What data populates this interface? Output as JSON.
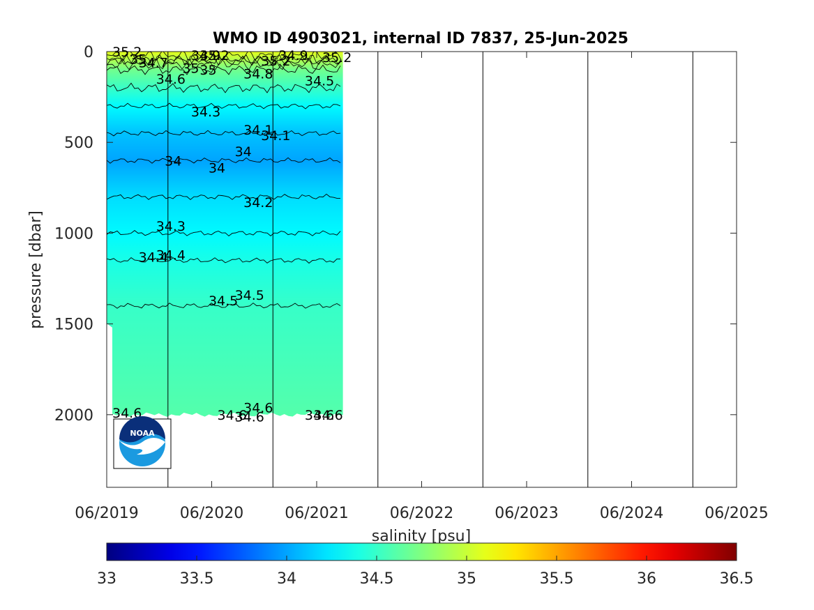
{
  "chart_data": {
    "type": "heatmap",
    "title": "WMO ID 4903021, internal ID 7837, 25-Jun-2025",
    "xlabel": "",
    "ylabel": "pressure [dbar]",
    "x_tick_labels": [
      "06/2019",
      "06/2020",
      "06/2021",
      "06/2022",
      "06/2023",
      "06/2024",
      "06/2025"
    ],
    "xlim": [
      "2019-06",
      "2025-06"
    ],
    "y_tick_labels": [
      "0",
      "500",
      "1000",
      "1500",
      "2000"
    ],
    "ylim": [
      2400,
      0
    ],
    "y_reversed": true,
    "data_x_extent": [
      "2019-06",
      "2021-09"
    ],
    "data_y_extent": [
      0,
      2000
    ],
    "year_boundaries": [
      "2020-01",
      "2021-01",
      "2022-01",
      "2023-01",
      "2024-01",
      "2025-01"
    ],
    "colorbar": {
      "label": "salinity [psu]",
      "colormap": "jet",
      "range": [
        33,
        36.5
      ],
      "tick_labels": [
        "33",
        "33.5",
        "34",
        "34.5",
        "35",
        "35.5",
        "36",
        "36.5"
      ]
    },
    "salinity_profile": [
      {
        "pressure": 0,
        "salinity": 35.1
      },
      {
        "pressure": 50,
        "salinity": 34.9
      },
      {
        "pressure": 100,
        "salinity": 34.7
      },
      {
        "pressure": 200,
        "salinity": 34.5
      },
      {
        "pressure": 300,
        "salinity": 34.3
      },
      {
        "pressure": 450,
        "salinity": 34.1
      },
      {
        "pressure": 600,
        "salinity": 34.0
      },
      {
        "pressure": 800,
        "salinity": 34.2
      },
      {
        "pressure": 1000,
        "salinity": 34.3
      },
      {
        "pressure": 1150,
        "salinity": 34.4
      },
      {
        "pressure": 1400,
        "salinity": 34.5
      },
      {
        "pressure": 2000,
        "salinity": 34.6
      }
    ],
    "contour_labels": [
      {
        "text": "35.2",
        "x": "2019-06",
        "pressure": 0
      },
      {
        "text": "35",
        "x": "2019-08",
        "pressure": 40
      },
      {
        "text": "34.7",
        "x": "2019-09",
        "pressure": 60
      },
      {
        "text": "34.6",
        "x": "2019-11",
        "pressure": 150
      },
      {
        "text": "35",
        "x": "2020-02",
        "pressure": 90
      },
      {
        "text": "34.9",
        "x": "2020-03",
        "pressure": 20
      },
      {
        "text": "35.2",
        "x": "2020-04",
        "pressure": 20
      },
      {
        "text": "35",
        "x": "2020-04",
        "pressure": 100
      },
      {
        "text": "34.8",
        "x": "2020-09",
        "pressure": 120
      },
      {
        "text": "35.2",
        "x": "2020-11",
        "pressure": 50
      },
      {
        "text": "34.9",
        "x": "2021-01",
        "pressure": 20
      },
      {
        "text": "35.2",
        "x": "2021-06",
        "pressure": 30
      },
      {
        "text": "34.5",
        "x": "2021-04",
        "pressure": 160
      },
      {
        "text": "34.3",
        "x": "2020-03",
        "pressure": 330
      },
      {
        "text": "34.1",
        "x": "2020-09",
        "pressure": 430
      },
      {
        "text": "34.1",
        "x": "2020-11",
        "pressure": 460
      },
      {
        "text": "34",
        "x": "2020-08",
        "pressure": 550
      },
      {
        "text": "34",
        "x": "2019-12",
        "pressure": 600
      },
      {
        "text": "34",
        "x": "2020-05",
        "pressure": 640
      },
      {
        "text": "34.2",
        "x": "2020-09",
        "pressure": 830
      },
      {
        "text": "34.3",
        "x": "2019-11",
        "pressure": 960
      },
      {
        "text": "34.4",
        "x": "2019-09",
        "pressure": 1130
      },
      {
        "text": "34.4",
        "x": "2019-11",
        "pressure": 1120
      },
      {
        "text": "34.5",
        "x": "2020-05",
        "pressure": 1370
      },
      {
        "text": "34.5",
        "x": "2020-08",
        "pressure": 1340
      },
      {
        "text": "34.6",
        "x": "2019-06",
        "pressure": 1990
      },
      {
        "text": "34.6",
        "x": "2020-06",
        "pressure": 2000
      },
      {
        "text": "34.6",
        "x": "2020-08",
        "pressure": 2010
      },
      {
        "text": "34.6",
        "x": "2020-09",
        "pressure": 1960
      },
      {
        "text": "34.6",
        "x": "2021-04",
        "pressure": 2000
      },
      {
        "text": "34.6",
        "x": "2021-05",
        "pressure": 2000
      }
    ]
  }
}
